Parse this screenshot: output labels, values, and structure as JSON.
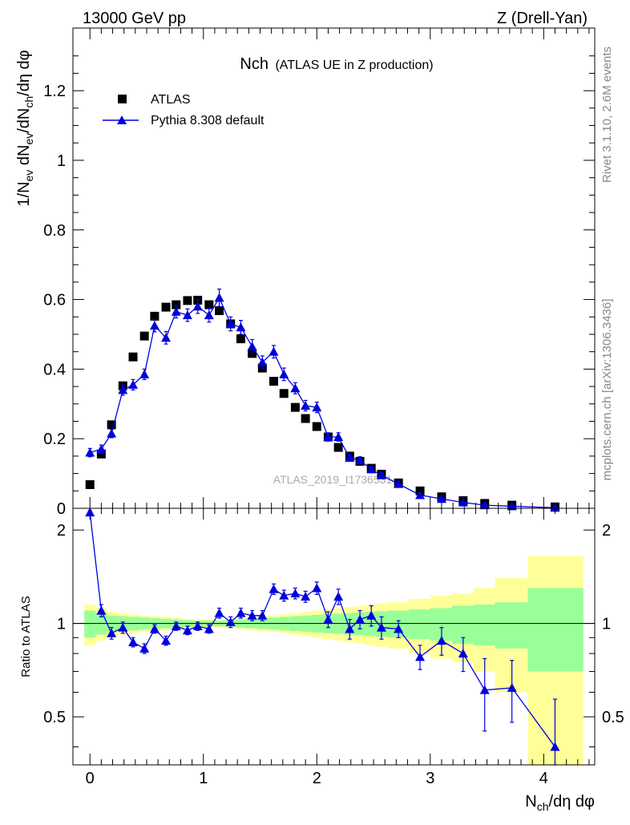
{
  "header": {
    "left": "13000 GeV pp",
    "right": "Z (Drell-Yan)"
  },
  "side_labels": {
    "rivet": "Rivet 3.1.10,  2.6M events",
    "mcplots": "mcplots.cern.ch [arXiv:1306.3436]"
  },
  "colors": {
    "mc": "#0000dd",
    "data": "#000000",
    "band_inner": "#99ff99",
    "band_outer": "#ffff99"
  },
  "chart_data": [
    {
      "type": "scatter",
      "title_main": "Nch",
      "title_sub": "(ATLAS UE in Z production)",
      "ylabel": "1/N_ev dN_ev/dN_ch/dη dφ",
      "watermark": "ATLAS_2019_I1736531",
      "xlim": [
        -0.15,
        4.45
      ],
      "ylim": [
        0,
        1.38
      ],
      "yticks": [
        {
          "v": 0,
          "label": "0"
        },
        {
          "v": 0.2,
          "label": "0.2"
        },
        {
          "v": 0.4,
          "label": "0.4"
        },
        {
          "v": 0.6,
          "label": "0.6"
        },
        {
          "v": 0.8,
          "label": "0.8"
        },
        {
          "v": 1.0,
          "label": "1"
        },
        {
          "v": 1.2,
          "label": "1.2"
        }
      ],
      "legend": [
        {
          "label": "ATLAS",
          "marker": "square"
        },
        {
          "label": "Pythia 8.308 default",
          "marker": "triangle"
        }
      ],
      "series": [
        {
          "name": "ATLAS",
          "marker": "square",
          "x": [
            0.0,
            0.1,
            0.19,
            0.29,
            0.38,
            0.48,
            0.57,
            0.67,
            0.76,
            0.86,
            0.95,
            1.05,
            1.14,
            1.24,
            1.33,
            1.43,
            1.52,
            1.62,
            1.71,
            1.81,
            1.9,
            2.0,
            2.1,
            2.19,
            2.29,
            2.38,
            2.48,
            2.57,
            2.72,
            2.91,
            3.1,
            3.29,
            3.48,
            3.72,
            4.1
          ],
          "y": [
            0.068,
            0.156,
            0.24,
            0.352,
            0.435,
            0.495,
            0.552,
            0.578,
            0.585,
            0.597,
            0.598,
            0.585,
            0.568,
            0.53,
            0.487,
            0.445,
            0.403,
            0.365,
            0.33,
            0.29,
            0.258,
            0.235,
            0.205,
            0.175,
            0.15,
            0.135,
            0.115,
            0.098,
            0.073,
            0.05,
            0.033,
            0.022,
            0.014,
            0.009,
            0.004
          ]
        },
        {
          "name": "Pythia 8.308 default",
          "marker": "triangle",
          "x": [
            0.0,
            0.1,
            0.19,
            0.29,
            0.38,
            0.48,
            0.57,
            0.67,
            0.76,
            0.86,
            0.95,
            1.05,
            1.14,
            1.24,
            1.33,
            1.43,
            1.52,
            1.62,
            1.71,
            1.81,
            1.9,
            2.0,
            2.1,
            2.19,
            2.29,
            2.38,
            2.48,
            2.57,
            2.72,
            2.91,
            3.1,
            3.29,
            3.48,
            3.72,
            4.1
          ],
          "y": [
            0.16,
            0.17,
            0.215,
            0.34,
            0.355,
            0.385,
            0.525,
            0.49,
            0.565,
            0.555,
            0.58,
            0.555,
            0.605,
            0.53,
            0.52,
            0.465,
            0.42,
            0.45,
            0.385,
            0.345,
            0.295,
            0.29,
            0.205,
            0.205,
            0.145,
            0.138,
            0.112,
            0.095,
            0.07,
            0.038,
            0.027,
            0.017,
            0.009,
            0.006,
            0.0016
          ],
          "err": [
            0.012,
            0.012,
            0.012,
            0.015,
            0.015,
            0.015,
            0.018,
            0.018,
            0.018,
            0.018,
            0.02,
            0.02,
            0.025,
            0.02,
            0.02,
            0.02,
            0.018,
            0.018,
            0.018,
            0.016,
            0.015,
            0.015,
            0.012,
            0.012,
            0.01,
            0.01,
            0.008,
            0.007,
            0.006,
            0.004,
            0.003,
            0.002,
            0.0015,
            0.001,
            0.0005
          ]
        }
      ]
    },
    {
      "type": "scatter",
      "ylabel": "Ratio to ATLAS",
      "xlabel": "N_ch/dη dφ",
      "xlim": [
        -0.15,
        4.45
      ],
      "ylim": [
        0.35,
        2.35
      ],
      "xticks": [
        {
          "v": 0,
          "label": "0"
        },
        {
          "v": 1,
          "label": "1"
        },
        {
          "v": 2,
          "label": "2"
        },
        {
          "v": 3,
          "label": "3"
        },
        {
          "v": 4,
          "label": "4"
        }
      ],
      "yticks": [
        {
          "v": 0.5,
          "label": "0.5"
        },
        {
          "v": 1,
          "label": "1"
        },
        {
          "v": 2,
          "label": "2"
        }
      ],
      "reference_line": 1,
      "bands": {
        "bins": [
          [
            -0.05,
            0.05
          ],
          [
            0.05,
            0.15
          ],
          [
            0.15,
            0.24
          ],
          [
            0.24,
            0.34
          ],
          [
            0.34,
            0.43
          ],
          [
            0.43,
            0.53
          ],
          [
            0.53,
            0.62
          ],
          [
            0.62,
            0.72
          ],
          [
            0.72,
            0.81
          ],
          [
            0.81,
            0.91
          ],
          [
            0.91,
            1.0
          ],
          [
            1.0,
            1.1
          ],
          [
            1.1,
            1.19
          ],
          [
            1.19,
            1.29
          ],
          [
            1.29,
            1.38
          ],
          [
            1.38,
            1.48
          ],
          [
            1.48,
            1.57
          ],
          [
            1.57,
            1.67
          ],
          [
            1.67,
            1.76
          ],
          [
            1.76,
            1.86
          ],
          [
            1.86,
            1.95
          ],
          [
            1.95,
            2.05
          ],
          [
            2.05,
            2.14
          ],
          [
            2.14,
            2.24
          ],
          [
            2.24,
            2.33
          ],
          [
            2.33,
            2.43
          ],
          [
            2.43,
            2.52
          ],
          [
            2.52,
            2.62
          ],
          [
            2.62,
            2.81
          ],
          [
            2.81,
            3.0
          ],
          [
            3.0,
            3.19
          ],
          [
            3.19,
            3.38
          ],
          [
            3.38,
            3.57
          ],
          [
            3.57,
            3.86
          ],
          [
            3.86,
            4.35
          ]
        ],
        "inner": [
          0.1,
          0.08,
          0.06,
          0.055,
          0.05,
          0.045,
          0.04,
          0.035,
          0.03,
          0.025,
          0.02,
          0.02,
          0.02,
          0.025,
          0.03,
          0.035,
          0.04,
          0.045,
          0.05,
          0.055,
          0.06,
          0.065,
          0.07,
          0.075,
          0.08,
          0.085,
          0.09,
          0.095,
          0.1,
          0.11,
          0.12,
          0.14,
          0.15,
          0.17,
          0.3
        ],
        "outer": [
          0.15,
          0.12,
          0.09,
          0.08,
          0.07,
          0.06,
          0.055,
          0.05,
          0.04,
          0.035,
          0.03,
          0.03,
          0.03,
          0.035,
          0.04,
          0.05,
          0.055,
          0.06,
          0.07,
          0.08,
          0.09,
          0.1,
          0.11,
          0.12,
          0.13,
          0.14,
          0.15,
          0.16,
          0.17,
          0.2,
          0.23,
          0.25,
          0.3,
          0.4,
          0.65
        ]
      },
      "series": [
        {
          "name": "Pythia 8.308 default",
          "marker": "triangle",
          "x": [
            0.0,
            0.1,
            0.19,
            0.29,
            0.38,
            0.48,
            0.57,
            0.67,
            0.76,
            0.86,
            0.95,
            1.05,
            1.14,
            1.24,
            1.33,
            1.43,
            1.52,
            1.62,
            1.71,
            1.81,
            1.9,
            2.0,
            2.1,
            2.19,
            2.29,
            2.38,
            2.48,
            2.57,
            2.72,
            2.91,
            3.1,
            3.29,
            3.48,
            3.72,
            4.1
          ],
          "y": [
            2.28,
            1.1,
            0.93,
            0.97,
            0.87,
            0.83,
            0.96,
            0.88,
            0.98,
            0.95,
            0.98,
            0.96,
            1.08,
            1.01,
            1.08,
            1.06,
            1.06,
            1.29,
            1.23,
            1.25,
            1.22,
            1.3,
            1.03,
            1.22,
            0.96,
            1.03,
            1.06,
            0.97,
            0.96,
            0.78,
            0.88,
            0.8,
            0.61,
            0.62,
            0.4
          ],
          "err": [
            0.03,
            0.05,
            0.04,
            0.04,
            0.03,
            0.03,
            0.03,
            0.03,
            0.03,
            0.03,
            0.03,
            0.03,
            0.04,
            0.04,
            0.04,
            0.04,
            0.04,
            0.05,
            0.05,
            0.05,
            0.05,
            0.06,
            0.06,
            0.07,
            0.07,
            0.07,
            0.08,
            0.08,
            0.06,
            0.07,
            0.09,
            0.1,
            0.16,
            0.14,
            0.17
          ]
        }
      ]
    }
  ]
}
